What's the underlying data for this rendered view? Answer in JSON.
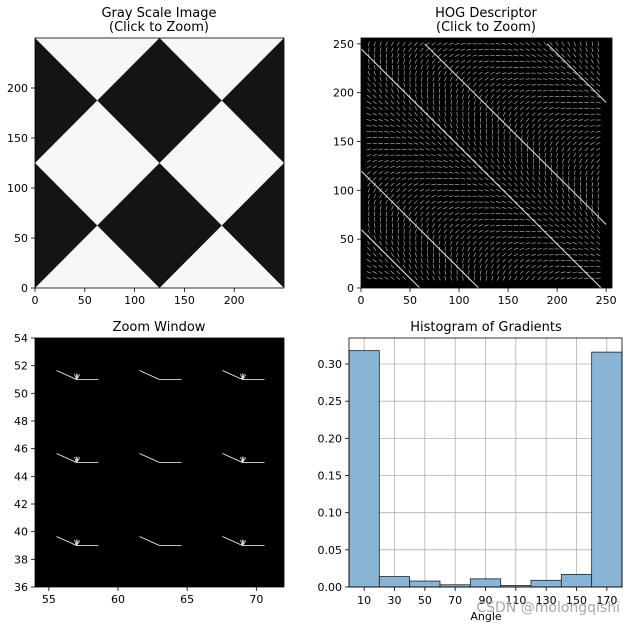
{
  "watermark": "CSDN @molongqishi",
  "colors": {
    "roi": "#c000c0",
    "hist_bar": "#8ab4d6",
    "hist_edge": "#1f1f1f",
    "grid": "#b0b0b0",
    "hog_line": "#ffffff",
    "image_dark": "#141414",
    "image_light": "#f7f7f7"
  },
  "chart_data": [
    {
      "type": "image",
      "title": "Gray Scale Image\n(Click to Zoom)",
      "xticks": [
        0,
        50,
        100,
        150,
        200
      ],
      "yticks": [
        0,
        50,
        100,
        150,
        200
      ],
      "xlim": [
        0,
        250
      ],
      "ylim": [
        250,
        0
      ],
      "roi": {
        "x": [
          60,
          66
        ],
        "y": [
          42,
          48
        ]
      }
    },
    {
      "type": "image",
      "title": "HOG Descriptor\n(Click to Zoom)",
      "xticks": [
        0,
        50,
        100,
        150,
        200,
        250
      ],
      "yticks": [
        0,
        50,
        100,
        150,
        200,
        250
      ],
      "xlim": [
        0,
        256
      ],
      "ylim": [
        256,
        0
      ],
      "roi": {
        "x": [
          60,
          66
        ],
        "y": [
          42,
          48
        ]
      }
    },
    {
      "type": "image",
      "title": "Zoom Window",
      "xticks": [
        55,
        60,
        65,
        70
      ],
      "yticks": [
        36,
        38,
        40,
        42,
        44,
        46,
        48,
        50,
        52,
        54
      ],
      "xlim": [
        54,
        72
      ],
      "ylim": [
        54,
        36
      ],
      "roi": {
        "x": [
          60,
          66
        ],
        "y": [
          42,
          48
        ]
      }
    },
    {
      "type": "bar",
      "title": "Histogram of Gradients",
      "xlabel": "Angle",
      "ylabel": "",
      "categories": [
        "10",
        "30",
        "50",
        "70",
        "90",
        "110",
        "130",
        "150",
        "170"
      ],
      "values": [
        0.318,
        0.014,
        0.008,
        0.003,
        0.011,
        0.002,
        0.009,
        0.017,
        0.316
      ],
      "ylim": [
        0,
        0.335
      ],
      "yticks": [
        "0.00",
        "0.05",
        "0.10",
        "0.15",
        "0.20",
        "0.25",
        "0.30"
      ],
      "ytick_values": [
        0,
        0.05,
        0.1,
        0.15,
        0.2,
        0.25,
        0.3
      ],
      "grid": true
    }
  ]
}
